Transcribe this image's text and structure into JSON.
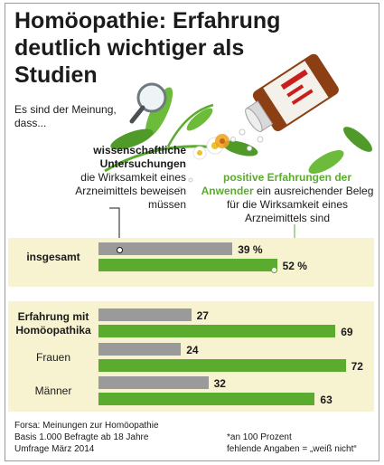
{
  "title": "Homöopathie: Erfahrung deutlich wichtiger als Studien",
  "intro": "Es sind der Meinung, dass...",
  "option_science": {
    "highlight": "wissenschaftliche Untersuchungen",
    "rest": "die Wirksamkeit eines Arzneimittels beweisen müssen"
  },
  "option_experience": {
    "highlight": "positive Erfahrungen der Anwender",
    "rest": "ein ausreichender Beleg für die Wirksamkeit eines Arzneimittels sind"
  },
  "colors": {
    "science": "#9a9a9a",
    "experience": "#5aab2e",
    "band": "#f7f3d1"
  },
  "chart_data": {
    "type": "bar",
    "orientation": "horizontal",
    "unit": "%",
    "categories": [
      "insgesamt",
      "Erfahrung mit Homöopathika",
      "Frauen",
      "Männer"
    ],
    "series": [
      {
        "key": "science",
        "values": [
          39,
          27,
          24,
          32
        ],
        "labels": [
          "39 %",
          "27",
          "24",
          "32"
        ]
      },
      {
        "key": "experience",
        "values": [
          52,
          69,
          72,
          63
        ],
        "labels": [
          "52 %",
          "69",
          "72",
          "63"
        ]
      }
    ],
    "xlim": [
      0,
      100
    ]
  },
  "footer": {
    "source_line1": "Forsa: Meinungen zur Homöopathie",
    "source_line2": "Basis 1.000 Befragte ab 18 Jahre",
    "source_line3": "Umfrage März 2014",
    "note_line1": "*an 100 Prozent",
    "note_line2": "fehlende Angaben = „weiß nicht“"
  }
}
